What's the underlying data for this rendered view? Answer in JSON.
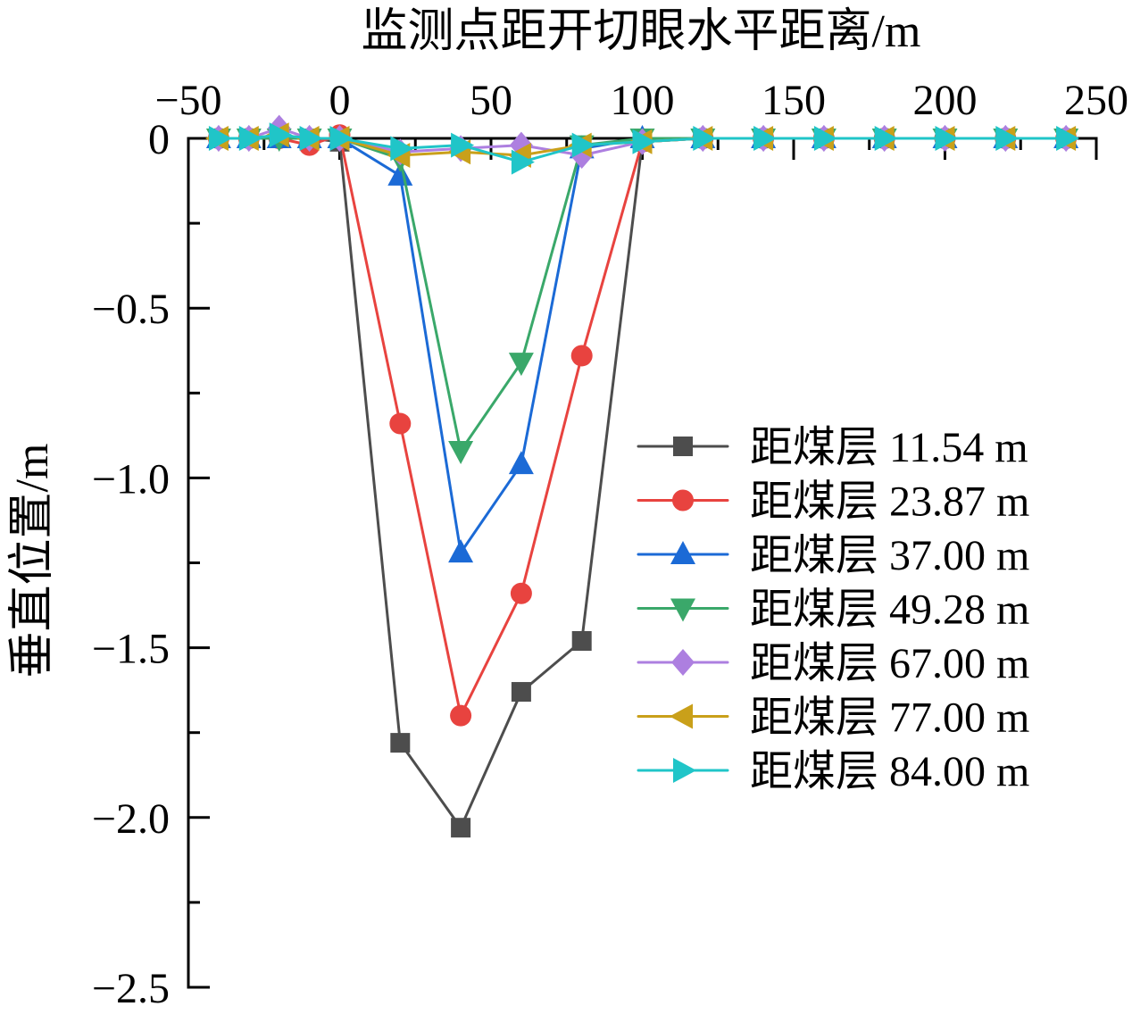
{
  "chart_data": {
    "type": "line",
    "xlabel": "监测点距开切眼水平距离/m",
    "ylabel": "垂直位置/m",
    "xaxis_location": "top",
    "xlim": [
      -50,
      250
    ],
    "ylim": [
      -2.5,
      0
    ],
    "xticks": [
      -50,
      0,
      50,
      100,
      150,
      200,
      250
    ],
    "xtick_labels": [
      "−50",
      "0",
      "50",
      "100",
      "150",
      "200",
      "250"
    ],
    "yticks": [
      0,
      -0.5,
      -1.0,
      -1.5,
      -2.0,
      -2.5
    ],
    "ytick_labels": [
      "0",
      "−0.5",
      "−1.0",
      "−1.5",
      "−2.0",
      "−2.5"
    ],
    "grid": false,
    "legend_position": "right",
    "x": [
      -40,
      -30,
      -20,
      -10,
      0,
      20,
      40,
      60,
      80,
      100,
      120,
      140,
      160,
      180,
      200,
      220,
      240
    ],
    "series": [
      {
        "name": "距煤层 11.54 m",
        "color": "#4d4d4d",
        "marker": "square",
        "values": [
          0,
          0,
          0,
          0,
          -0.01,
          -1.78,
          -2.03,
          -1.63,
          -1.48,
          -0.01,
          0,
          0,
          0,
          0,
          0,
          0,
          0
        ]
      },
      {
        "name": "距煤层 23.87 m",
        "color": "#e8433f",
        "marker": "circle",
        "values": [
          0,
          0,
          0,
          -0.02,
          0.01,
          -0.84,
          -1.7,
          -1.34,
          -0.64,
          -0.01,
          0,
          0,
          0,
          0,
          0,
          0,
          0
        ]
      },
      {
        "name": "距煤层 37.00 m",
        "color": "#1b6ad6",
        "marker": "triangle-up",
        "values": [
          0,
          0,
          0,
          0,
          0,
          -0.11,
          -1.22,
          -0.96,
          -0.03,
          0,
          0,
          0,
          0,
          0,
          0,
          0,
          0
        ]
      },
      {
        "name": "距煤层 49.28 m",
        "color": "#3aa86a",
        "marker": "triangle-down",
        "values": [
          0,
          0,
          0,
          0,
          0,
          -0.06,
          -0.92,
          -0.66,
          -0.02,
          0,
          0,
          0,
          0,
          0,
          0,
          0,
          0
        ]
      },
      {
        "name": "距煤层 67.00 m",
        "color": "#ad7fe0",
        "marker": "diamond",
        "values": [
          0,
          0,
          0.03,
          0,
          0,
          -0.04,
          -0.03,
          -0.02,
          -0.05,
          -0.01,
          0,
          0,
          0,
          0,
          0,
          0,
          0
        ]
      },
      {
        "name": "距煤层 77.00 m",
        "color": "#c9a01a",
        "marker": "triangle-left",
        "values": [
          0,
          0,
          0.01,
          0,
          0,
          -0.05,
          -0.04,
          -0.05,
          -0.02,
          -0.01,
          0,
          0,
          0,
          0,
          0,
          0,
          0
        ]
      },
      {
        "name": "距煤层 84.00 m",
        "color": "#20c5c8",
        "marker": "triangle-right",
        "values": [
          0,
          0,
          0.01,
          0,
          0,
          -0.03,
          -0.02,
          -0.07,
          -0.02,
          -0.01,
          0,
          0,
          0,
          0,
          0,
          0,
          0
        ]
      }
    ]
  }
}
